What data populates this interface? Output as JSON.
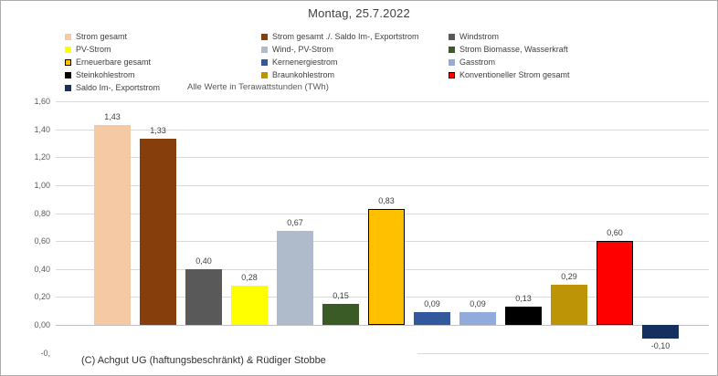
{
  "title": "Montag, 25.7.2022",
  "unit_note": "Alle Werte in Terawattstunden (TWh)",
  "copyright": "(C) Achgut UG (haftungsbeschränkt) & Rüdiger Stobbe",
  "colors": {
    "grid": "#d9d9d9",
    "axis": "#c0c0c0",
    "background": "#ffffff",
    "title_text": "#3f3f3f",
    "label_text": "#404040",
    "tick_text": "#595959"
  },
  "legend": {
    "columns": [
      [
        {
          "label": "Strom gesamt",
          "color": "#F6C9A5",
          "outlined": false
        },
        {
          "label": "PV-Strom",
          "color": "#FFFF00",
          "outlined": false
        },
        {
          "label": "Erneuerbare gesamt",
          "color": "#FFC000",
          "outlined": true
        },
        {
          "label": "Steinkohlestrom",
          "color": "#000000",
          "outlined": false
        },
        {
          "label": "Saldo Im-, Exportstrom",
          "color": "#15305F",
          "outlined": false
        }
      ],
      [
        {
          "label": "Strom gesamt ./. Saldo Im-, Exportstrom",
          "color": "#873E0D",
          "outlined": false
        },
        {
          "label": "Wind-, PV-Strom",
          "color": "#AFBACB",
          "outlined": false
        },
        {
          "label": "Kernenergiestrom",
          "color": "#33589D",
          "outlined": false
        },
        {
          "label": "Braunkohlestrom",
          "color": "#BC9406",
          "outlined": false
        }
      ],
      [
        {
          "label": "Windstrom",
          "color": "#595959",
          "outlined": false
        },
        {
          "label": "Strom Biomasse, Wasserkraft",
          "color": "#3A5B25",
          "outlined": false
        },
        {
          "label": "Gasstrom",
          "color": "#92ABDA",
          "outlined": false
        },
        {
          "label": "Konventioneller Strom gesamt",
          "color": "#FF0000",
          "outlined": true
        }
      ]
    ]
  },
  "chart_data": {
    "type": "bar",
    "title": "Montag, 25.7.2022",
    "xlabel": "",
    "ylabel": "",
    "unit": "TWh",
    "ylim": [
      -0.2,
      1.6
    ],
    "grid": true,
    "legend_position": "top",
    "categories": [
      "Strom gesamt",
      "Strom gesamt ./. Saldo Im-, Exportstrom",
      "Windstrom",
      "PV-Strom",
      "Wind-, PV-Strom",
      "Strom Biomasse, Wasserkraft",
      "Erneuerbare gesamt",
      "Kernenergiestrom",
      "Gasstrom",
      "Steinkohlestrom",
      "Braunkohlestrom",
      "Konventioneller Strom gesamt",
      "Saldo Im-, Exportstrom"
    ],
    "values": [
      1.43,
      1.33,
      0.4,
      0.28,
      0.67,
      0.15,
      0.83,
      0.09,
      0.09,
      0.13,
      0.29,
      0.6,
      -0.1
    ],
    "value_labels": [
      "1,43",
      "1,33",
      "0,40",
      "0,28",
      "0,67",
      "0,15",
      "0,83",
      "0,09",
      "0,09",
      "0,13",
      "0,29",
      "0,60",
      "-0,10"
    ],
    "bar_colors": [
      "#F6C9A5",
      "#873E0D",
      "#595959",
      "#FFFF00",
      "#AFBACB",
      "#3A5B25",
      "#FFC000",
      "#33589D",
      "#92ABDA",
      "#000000",
      "#BC9406",
      "#FF0000",
      "#15305F"
    ],
    "outlined_bars": [
      6,
      11
    ],
    "yticks": [
      {
        "label": "1,60",
        "value": 1.6
      },
      {
        "label": "1,40",
        "value": 1.4
      },
      {
        "label": "1,20",
        "value": 1.2
      },
      {
        "label": "1,00",
        "value": 1.0
      },
      {
        "label": "0,80",
        "value": 0.8
      },
      {
        "label": "0,60",
        "value": 0.6
      },
      {
        "label": "0,40",
        "value": 0.4
      },
      {
        "label": "0,20",
        "value": 0.2
      },
      {
        "label": "0,00",
        "value": 0.0
      },
      {
        "label": "-0,",
        "value": -0.2
      }
    ]
  }
}
